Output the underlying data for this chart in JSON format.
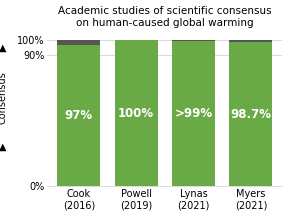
{
  "title": "Academic studies of scientific consensus\non human-caused global warming",
  "categories": [
    "Cook\n(2016)",
    "Powell\n(2019)",
    "Lynas\n(2021)",
    "Myers\n(2021)"
  ],
  "consensus_values": [
    97,
    100,
    99.5,
    98.7
  ],
  "non_consensus_values": [
    3,
    0,
    0.5,
    1.3
  ],
  "labels": [
    "97%",
    "100%",
    ">99%",
    "98.7%"
  ],
  "bar_color_green": "#6aaa46",
  "bar_color_gray": "#555555",
  "label_color": "#ffffff",
  "ylabel_top": "▲",
  "ylabel_mid": "Consensus",
  "ylabel_bot": "▲",
  "ytick_positions": [
    0,
    90,
    100
  ],
  "ytick_labels": [
    "0%",
    "90%",
    "100%"
  ],
  "background_color": "#ffffff",
  "title_fontsize": 7.5,
  "label_fontsize": 8.5,
  "ylabel_fontsize": 7,
  "tick_fontsize": 7,
  "bar_width": 0.75
}
